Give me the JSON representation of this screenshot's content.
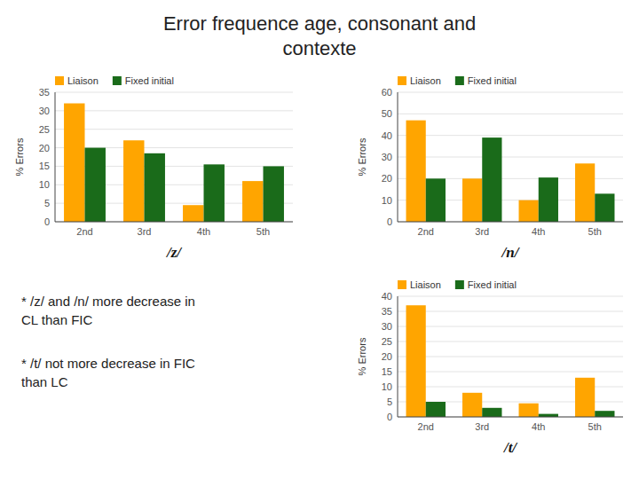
{
  "title": "Error frequence age, consonant and\ncontexte",
  "annotations": [
    "* /z/ and /n/ more decrease in\nCL than FIC",
    "* /t/ not more decrease in FIC\nthan LC"
  ],
  "chart_data": [
    {
      "type": "bar",
      "title": "/z/",
      "ylabel": "% Errors",
      "categories": [
        "2nd",
        "3rd",
        "4th",
        "5th"
      ],
      "series": [
        {
          "name": "Liaison",
          "color": "#FFA500",
          "values": [
            32,
            22,
            4.5,
            11
          ]
        },
        {
          "name": "Fixed initial",
          "color": "#1a6b1a",
          "values": [
            20,
            18.5,
            15.5,
            15
          ]
        }
      ],
      "ylim": [
        0,
        35
      ],
      "yticks": [
        0,
        5,
        10,
        15,
        20,
        25,
        30,
        35
      ],
      "grid": true,
      "legend": "top"
    },
    {
      "type": "bar",
      "title": "/n/",
      "ylabel": "% Errors",
      "categories": [
        "2nd",
        "3rd",
        "4th",
        "5th"
      ],
      "series": [
        {
          "name": "Liaison",
          "color": "#FFA500",
          "values": [
            47,
            20,
            10,
            27
          ]
        },
        {
          "name": "Fixed initial",
          "color": "#1a6b1a",
          "values": [
            20,
            39,
            20.5,
            13
          ]
        }
      ],
      "ylim": [
        0,
        60
      ],
      "yticks": [
        0,
        10,
        20,
        30,
        40,
        50,
        60
      ],
      "grid": true,
      "legend": "top"
    },
    {
      "type": "bar",
      "title": "/t/",
      "ylabel": "% Errors",
      "categories": [
        "2nd",
        "3rd",
        "4th",
        "5th"
      ],
      "series": [
        {
          "name": "Liaison",
          "color": "#FFA500",
          "values": [
            37,
            8,
            4.5,
            13
          ]
        },
        {
          "name": "Fixed initial",
          "color": "#1a6b1a",
          "values": [
            5,
            3,
            1,
            2
          ]
        }
      ],
      "ylim": [
        0,
        40
      ],
      "yticks": [
        0,
        5,
        10,
        15,
        20,
        25,
        30,
        35,
        40
      ],
      "grid": true,
      "legend": "top"
    }
  ]
}
